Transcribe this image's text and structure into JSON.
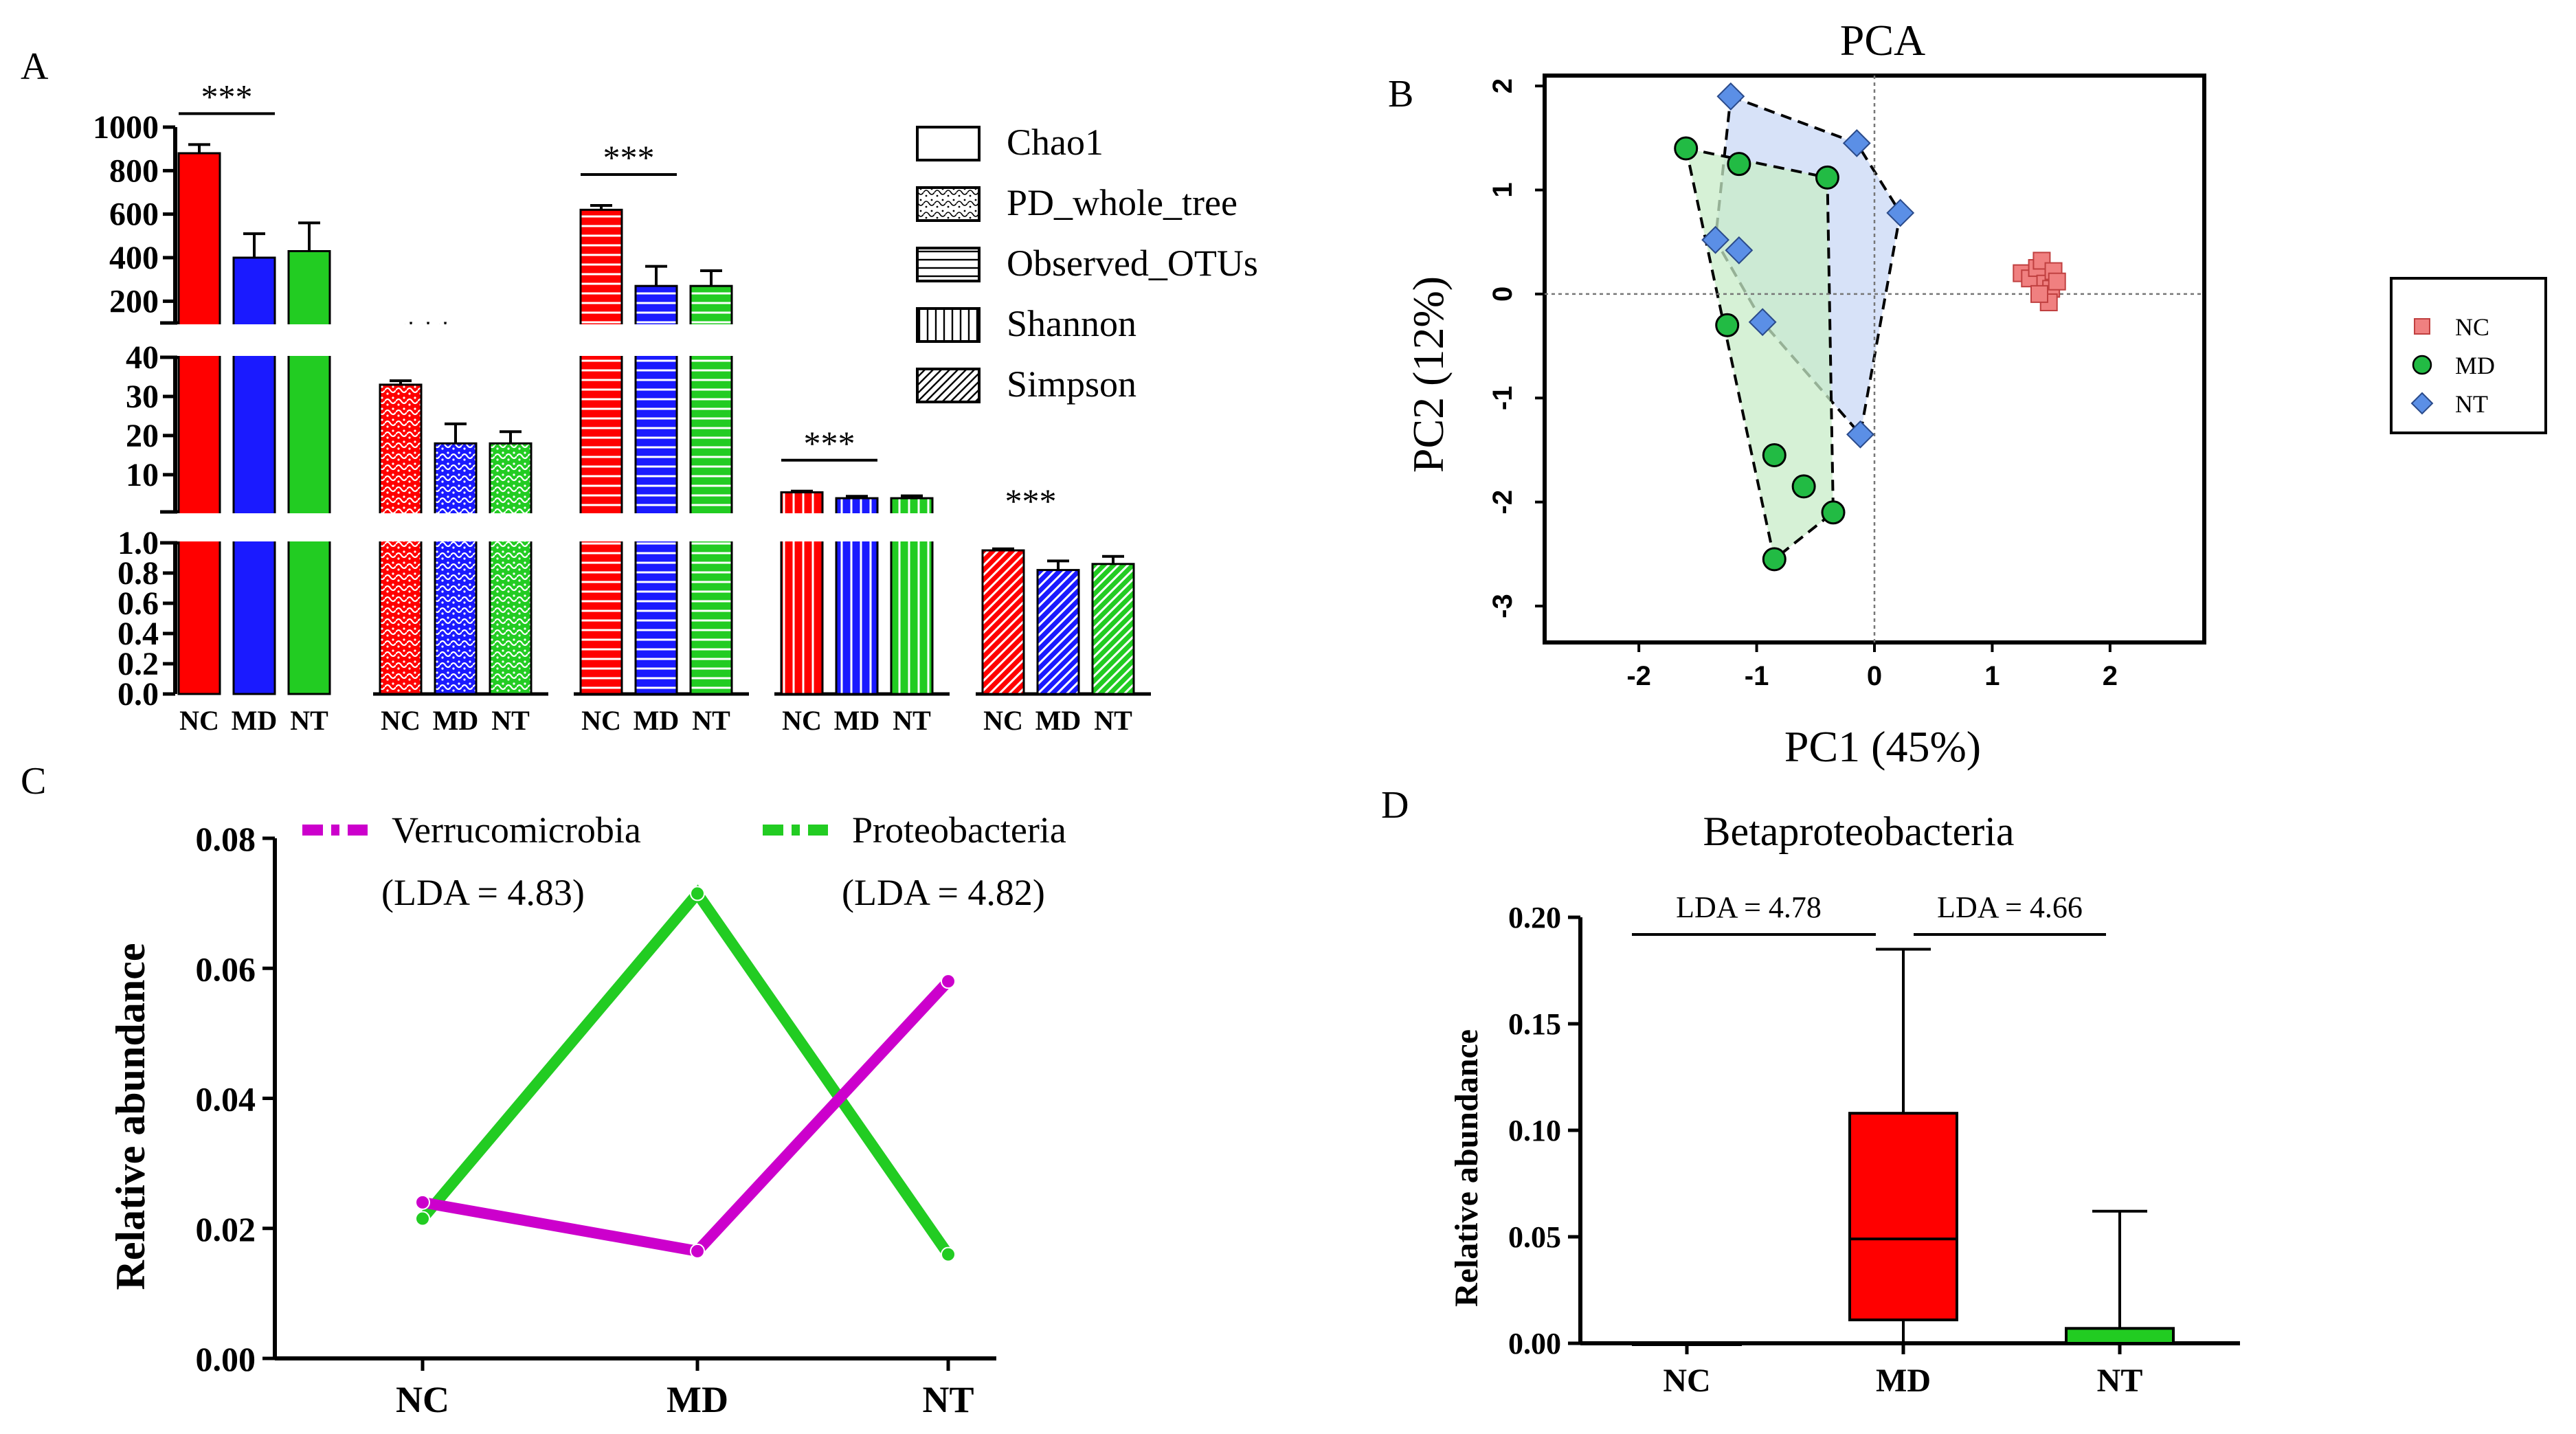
{
  "colors": {
    "nc": "#ff0000",
    "md": "#1a1aff",
    "nt": "#22cc22",
    "pca_nc": "#f08080",
    "pca_md": "#22bb44",
    "pca_nt": "#5b8fe6",
    "hull_nt": "#c9d8f5",
    "hull_md": "#c8ecc8",
    "verruco": "#cc00cc",
    "proteo": "#22cc22",
    "black": "#000000"
  },
  "chart_data": [
    {
      "id": "A",
      "panel_label": "A",
      "type": "bar",
      "groups": [
        "NC",
        "MD",
        "NT"
      ],
      "metrics": [
        "Chao1",
        "PD_whole_tree",
        "Observed_OTUs",
        "Shannon",
        "Simpson"
      ],
      "legend": [
        "Chao1",
        "PD_whole_tree",
        "Observed_OTUs",
        "Shannon",
        "Simpson"
      ],
      "segments": [
        {
          "ticks": [
            "1000",
            "800",
            "600",
            "400",
            "200"
          ],
          "range": [
            100,
            1000
          ],
          "tick_values": [
            1000,
            800,
            600,
            400,
            200
          ]
        },
        {
          "ticks": [
            "40",
            "30",
            "20",
            "10"
          ],
          "range": [
            0.5,
            40
          ],
          "tick_values": [
            40,
            30,
            20,
            10
          ]
        },
        {
          "ticks": [
            "1.0",
            "0.8",
            "0.6",
            "0.4",
            "0.2",
            "0.0"
          ],
          "range": [
            0,
            1.0
          ],
          "tick_values": [
            1.0,
            0.8,
            0.6,
            0.4,
            0.2,
            0.0
          ]
        }
      ],
      "bars": [
        {
          "metric": "Chao1",
          "values": [
            880,
            400,
            430
          ],
          "errors": [
            40,
            110,
            130
          ],
          "segment": 0
        },
        {
          "metric": "PD_whole_tree",
          "values": [
            33,
            18,
            18
          ],
          "errors": [
            1,
            5,
            3
          ],
          "segment": 1
        },
        {
          "metric": "Observed_OTUs",
          "values": [
            620,
            270,
            270
          ],
          "errors": [
            20,
            90,
            70
          ],
          "segment": 0
        },
        {
          "metric": "Shannon",
          "values": [
            5.5,
            4,
            4
          ],
          "errors": [
            0.3,
            0.5,
            0.6
          ],
          "segment": 1
        },
        {
          "metric": "Simpson",
          "values": [
            0.95,
            0.82,
            0.86
          ],
          "errors": [
            0.01,
            0.06,
            0.05
          ],
          "segment": 2
        }
      ],
      "significance": "***",
      "xlabels": [
        "NC",
        "MD",
        "NT"
      ]
    },
    {
      "id": "B",
      "panel_label": "B",
      "type": "scatter",
      "title": "PCA",
      "xlabel": "PC1 (45%)",
      "ylabel": "PC2 (12%)",
      "xlim": [
        -2.8,
        2.8
      ],
      "ylim": [
        -3.35,
        2.1
      ],
      "xticks": [
        -2,
        -1,
        0,
        1,
        2
      ],
      "yticks": [
        2,
        1,
        0,
        -1,
        -2,
        -3
      ],
      "xtick_labels": [
        "-2",
        "-1",
        "0",
        "1",
        "2"
      ],
      "ytick_labels": [
        "2",
        "1",
        "0",
        "-1",
        "-2",
        "-3"
      ],
      "legend": [
        "NC",
        "MD",
        "NT"
      ],
      "series": [
        {
          "name": "NC",
          "points": [
            [
              1.25,
              0.2
            ],
            [
              1.32,
              0.15
            ],
            [
              1.38,
              0.25
            ],
            [
              1.42,
              0.32
            ],
            [
              1.45,
              0.1
            ],
            [
              1.5,
              0.05
            ],
            [
              1.52,
              0.22
            ],
            [
              1.48,
              -0.08
            ],
            [
              1.55,
              0.12
            ],
            [
              1.4,
              0.0
            ]
          ]
        },
        {
          "name": "MD",
          "points": [
            [
              -1.6,
              1.4
            ],
            [
              -1.15,
              1.25
            ],
            [
              -0.4,
              1.12
            ],
            [
              -1.25,
              -0.3
            ],
            [
              -0.85,
              -1.55
            ],
            [
              -0.6,
              -1.85
            ],
            [
              -0.35,
              -2.1
            ],
            [
              -0.85,
              -2.55
            ]
          ]
        },
        {
          "name": "NT",
          "points": [
            [
              -1.22,
              1.9
            ],
            [
              -0.15,
              1.45
            ],
            [
              0.22,
              0.78
            ],
            [
              -1.35,
              0.52
            ],
            [
              -1.15,
              0.42
            ],
            [
              -0.95,
              -0.27
            ],
            [
              -0.12,
              -1.35
            ]
          ]
        }
      ],
      "hulls": [
        {
          "name": "NT",
          "points": [
            [
              -1.22,
              1.9
            ],
            [
              -0.15,
              1.45
            ],
            [
              0.22,
              0.78
            ],
            [
              -0.12,
              -1.35
            ],
            [
              -0.95,
              -0.27
            ],
            [
              -1.35,
              0.52
            ]
          ]
        },
        {
          "name": "MD",
          "points": [
            [
              -1.6,
              1.4
            ],
            [
              -0.4,
              1.12
            ],
            [
              -0.35,
              -2.1
            ],
            [
              -0.85,
              -2.55
            ]
          ]
        }
      ]
    },
    {
      "id": "C",
      "panel_label": "C",
      "type": "line",
      "categories": [
        "NC",
        "MD",
        "NT"
      ],
      "ylabel": "Relative abundance",
      "ylim": [
        0,
        0.08
      ],
      "yticks": [
        0,
        0.02,
        0.04,
        0.06,
        0.08
      ],
      "ytick_labels": [
        "0.00",
        "0.02",
        "0.04",
        "0.06",
        "0.08"
      ],
      "series": [
        {
          "name": "Verrucomicrobia",
          "lda": "(LDA = 4.83)",
          "values": [
            0.024,
            0.0165,
            0.058
          ]
        },
        {
          "name": "Proteobacteria",
          "lda": "(LDA = 4.82)",
          "values": [
            0.0215,
            0.0715,
            0.016
          ]
        }
      ]
    },
    {
      "id": "D",
      "panel_label": "D",
      "type": "box",
      "title": "Betaproteobacteria",
      "ylabel": "Relative abundance",
      "categories": [
        "NC",
        "MD",
        "NT"
      ],
      "ylim": [
        0,
        0.2
      ],
      "yticks": [
        0,
        0.05,
        0.1,
        0.15,
        0.2
      ],
      "ytick_labels": [
        "0.00",
        "0.05",
        "0.10",
        "0.15",
        "0.20"
      ],
      "boxes": [
        {
          "name": "NC",
          "min": 0,
          "q1": 0,
          "median": 0,
          "q3": 0,
          "max": 0
        },
        {
          "name": "MD",
          "min": 0,
          "q1": 0.011,
          "median": 0.049,
          "q3": 0.108,
          "max": 0.185
        },
        {
          "name": "NT",
          "min": 0,
          "q1": 0,
          "median": 0,
          "q3": 0.007,
          "max": 0.062
        }
      ],
      "brackets": [
        {
          "from": "NC",
          "to": "MD",
          "label": "LDA = 4.78"
        },
        {
          "from": "MD",
          "to": "NT",
          "label": "LDA = 4.66"
        }
      ]
    }
  ]
}
